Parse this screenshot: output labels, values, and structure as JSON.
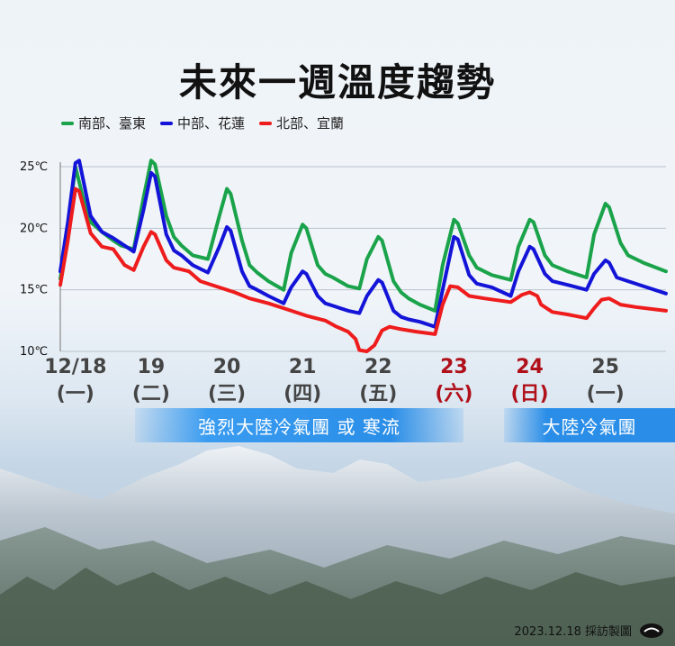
{
  "title": "未來一週溫度趨勢",
  "legend": [
    {
      "label": "南部、臺東",
      "color": "#1aa34a"
    },
    {
      "label": "中部、花蓮",
      "color": "#1414d8"
    },
    {
      "label": "北部、宜蘭",
      "color": "#ee1c1c"
    }
  ],
  "bands": [
    {
      "label": "強烈大陸冷氣團 或 寒流"
    },
    {
      "label": "大陸冷氣團"
    }
  ],
  "credit": "2023.12.18 採訪製圖",
  "chart_data": {
    "type": "line",
    "title": "未來一週溫度趨勢",
    "ylim": [
      10,
      25.5
    ],
    "yticks": [
      "10℃",
      "15℃",
      "20℃",
      "25℃"
    ],
    "ytick_values": [
      10,
      15,
      20,
      25
    ],
    "xlim": [
      0,
      8
    ],
    "days": [
      {
        "date": "12/18",
        "weekday": "(一)",
        "x": 0.2,
        "weekend": false
      },
      {
        "date": "19",
        "weekday": "(二)",
        "x": 1.2,
        "weekend": false
      },
      {
        "date": "20",
        "weekday": "(三)",
        "x": 2.2,
        "weekend": false
      },
      {
        "date": "21",
        "weekday": "(四)",
        "x": 3.2,
        "weekend": false
      },
      {
        "date": "22",
        "weekday": "(五)",
        "x": 4.2,
        "weekend": false
      },
      {
        "date": "23",
        "weekday": "(六)",
        "x": 5.2,
        "weekend": true
      },
      {
        "date": "24",
        "weekday": "(日)",
        "x": 6.2,
        "weekend": true
      },
      {
        "date": "25",
        "weekday": "(一)",
        "x": 7.2,
        "weekend": false
      }
    ],
    "weekend_color": "#b0101a",
    "series": [
      {
        "name": "南部、臺東",
        "color": "#1aa34a",
        "points": [
          [
            0,
            15.9
          ],
          [
            0.1,
            20
          ],
          [
            0.2,
            25
          ],
          [
            0.3,
            22.5
          ],
          [
            0.4,
            20.5
          ],
          [
            0.55,
            19.7
          ],
          [
            0.7,
            19
          ],
          [
            0.8,
            18.6
          ],
          [
            0.97,
            18.3
          ],
          [
            1.1,
            22.5
          ],
          [
            1.2,
            25.5
          ],
          [
            1.25,
            25.2
          ],
          [
            1.4,
            21
          ],
          [
            1.5,
            19.3
          ],
          [
            1.6,
            18.6
          ],
          [
            1.75,
            17.8
          ],
          [
            1.95,
            17.5
          ],
          [
            2.1,
            21
          ],
          [
            2.2,
            23.2
          ],
          [
            2.25,
            22.8
          ],
          [
            2.4,
            19
          ],
          [
            2.5,
            17
          ],
          [
            2.6,
            16.4
          ],
          [
            2.75,
            15.7
          ],
          [
            2.95,
            15
          ],
          [
            3.05,
            18
          ],
          [
            3.2,
            20.3
          ],
          [
            3.25,
            20
          ],
          [
            3.4,
            17
          ],
          [
            3.5,
            16.3
          ],
          [
            3.6,
            16
          ],
          [
            3.8,
            15.3
          ],
          [
            3.95,
            15.1
          ],
          [
            4.05,
            17.5
          ],
          [
            4.2,
            19.3
          ],
          [
            4.25,
            19
          ],
          [
            4.4,
            15.7
          ],
          [
            4.5,
            14.8
          ],
          [
            4.6,
            14.3
          ],
          [
            4.75,
            13.8
          ],
          [
            4.95,
            13.3
          ],
          [
            5.05,
            17
          ],
          [
            5.2,
            20.7
          ],
          [
            5.25,
            20.4
          ],
          [
            5.4,
            17.8
          ],
          [
            5.5,
            16.8
          ],
          [
            5.7,
            16.2
          ],
          [
            5.95,
            15.8
          ],
          [
            6.05,
            18.5
          ],
          [
            6.2,
            20.7
          ],
          [
            6.25,
            20.5
          ],
          [
            6.4,
            17.8
          ],
          [
            6.5,
            17
          ],
          [
            6.7,
            16.5
          ],
          [
            6.95,
            16
          ],
          [
            7.05,
            19.5
          ],
          [
            7.2,
            22
          ],
          [
            7.25,
            21.7
          ],
          [
            7.4,
            18.8
          ],
          [
            7.5,
            17.8
          ],
          [
            7.7,
            17.2
          ],
          [
            8,
            16.5
          ]
        ]
      },
      {
        "name": "中部、花蓮",
        "color": "#1414d8",
        "points": [
          [
            0,
            16.5
          ],
          [
            0.1,
            20.5
          ],
          [
            0.2,
            25.3
          ],
          [
            0.25,
            25.5
          ],
          [
            0.4,
            21
          ],
          [
            0.55,
            19.7
          ],
          [
            0.7,
            19.2
          ],
          [
            0.97,
            18.1
          ],
          [
            1.1,
            21.5
          ],
          [
            1.2,
            24.5
          ],
          [
            1.25,
            24.2
          ],
          [
            1.4,
            19.5
          ],
          [
            1.5,
            18.2
          ],
          [
            1.6,
            17.8
          ],
          [
            1.75,
            17
          ],
          [
            1.95,
            16.4
          ],
          [
            2.1,
            18.5
          ],
          [
            2.2,
            20.1
          ],
          [
            2.25,
            19.8
          ],
          [
            2.4,
            16.5
          ],
          [
            2.5,
            15.3
          ],
          [
            2.6,
            15
          ],
          [
            2.75,
            14.5
          ],
          [
            2.95,
            13.9
          ],
          [
            3.05,
            15.2
          ],
          [
            3.2,
            16.5
          ],
          [
            3.25,
            16.3
          ],
          [
            3.4,
            14.5
          ],
          [
            3.5,
            13.9
          ],
          [
            3.6,
            13.7
          ],
          [
            3.8,
            13.3
          ],
          [
            3.95,
            13.1
          ],
          [
            4.05,
            14.5
          ],
          [
            4.2,
            15.8
          ],
          [
            4.25,
            15.6
          ],
          [
            4.4,
            13.3
          ],
          [
            4.5,
            12.8
          ],
          [
            4.6,
            12.6
          ],
          [
            4.75,
            12.4
          ],
          [
            4.95,
            12
          ],
          [
            5.05,
            15
          ],
          [
            5.2,
            19.3
          ],
          [
            5.25,
            19.1
          ],
          [
            5.4,
            16.2
          ],
          [
            5.5,
            15.5
          ],
          [
            5.7,
            15.2
          ],
          [
            5.95,
            14.5
          ],
          [
            6.05,
            16.5
          ],
          [
            6.2,
            18.5
          ],
          [
            6.25,
            18.3
          ],
          [
            6.4,
            16.3
          ],
          [
            6.5,
            15.7
          ],
          [
            6.7,
            15.4
          ],
          [
            6.95,
            15
          ],
          [
            7.05,
            16.3
          ],
          [
            7.2,
            17.4
          ],
          [
            7.25,
            17.2
          ],
          [
            7.35,
            16
          ],
          [
            7.5,
            15.7
          ],
          [
            7.7,
            15.3
          ],
          [
            8,
            14.7
          ]
        ]
      },
      {
        "name": "北部、宜蘭",
        "color": "#ee1c1c",
        "points": [
          [
            0,
            15.4
          ],
          [
            0.1,
            19
          ],
          [
            0.2,
            23.2
          ],
          [
            0.25,
            23
          ],
          [
            0.4,
            19.6
          ],
          [
            0.55,
            18.5
          ],
          [
            0.7,
            18.3
          ],
          [
            0.85,
            17
          ],
          [
            0.97,
            16.6
          ],
          [
            1.1,
            18.5
          ],
          [
            1.2,
            19.7
          ],
          [
            1.25,
            19.5
          ],
          [
            1.4,
            17.4
          ],
          [
            1.5,
            16.8
          ],
          [
            1.7,
            16.5
          ],
          [
            1.85,
            15.7
          ],
          [
            2.05,
            15.3
          ],
          [
            2.3,
            14.8
          ],
          [
            2.5,
            14.3
          ],
          [
            2.75,
            13.9
          ],
          [
            3,
            13.4
          ],
          [
            3.25,
            12.9
          ],
          [
            3.5,
            12.5
          ],
          [
            3.65,
            12
          ],
          [
            3.8,
            11.6
          ],
          [
            3.9,
            11
          ],
          [
            3.95,
            10.1
          ],
          [
            4.05,
            10
          ],
          [
            4.15,
            10.5
          ],
          [
            4.25,
            11.7
          ],
          [
            4.35,
            12
          ],
          [
            4.5,
            11.8
          ],
          [
            4.7,
            11.6
          ],
          [
            4.95,
            11.4
          ],
          [
            5.05,
            13.8
          ],
          [
            5.15,
            15.3
          ],
          [
            5.25,
            15.2
          ],
          [
            5.4,
            14.5
          ],
          [
            5.6,
            14.3
          ],
          [
            5.95,
            14
          ],
          [
            6.1,
            14.6
          ],
          [
            6.2,
            14.8
          ],
          [
            6.3,
            14.5
          ],
          [
            6.35,
            13.8
          ],
          [
            6.5,
            13.2
          ],
          [
            6.7,
            13
          ],
          [
            6.95,
            12.7
          ],
          [
            7.05,
            13.5
          ],
          [
            7.15,
            14.2
          ],
          [
            7.25,
            14.3
          ],
          [
            7.4,
            13.8
          ],
          [
            7.6,
            13.6
          ],
          [
            8,
            13.3
          ]
        ]
      }
    ]
  }
}
